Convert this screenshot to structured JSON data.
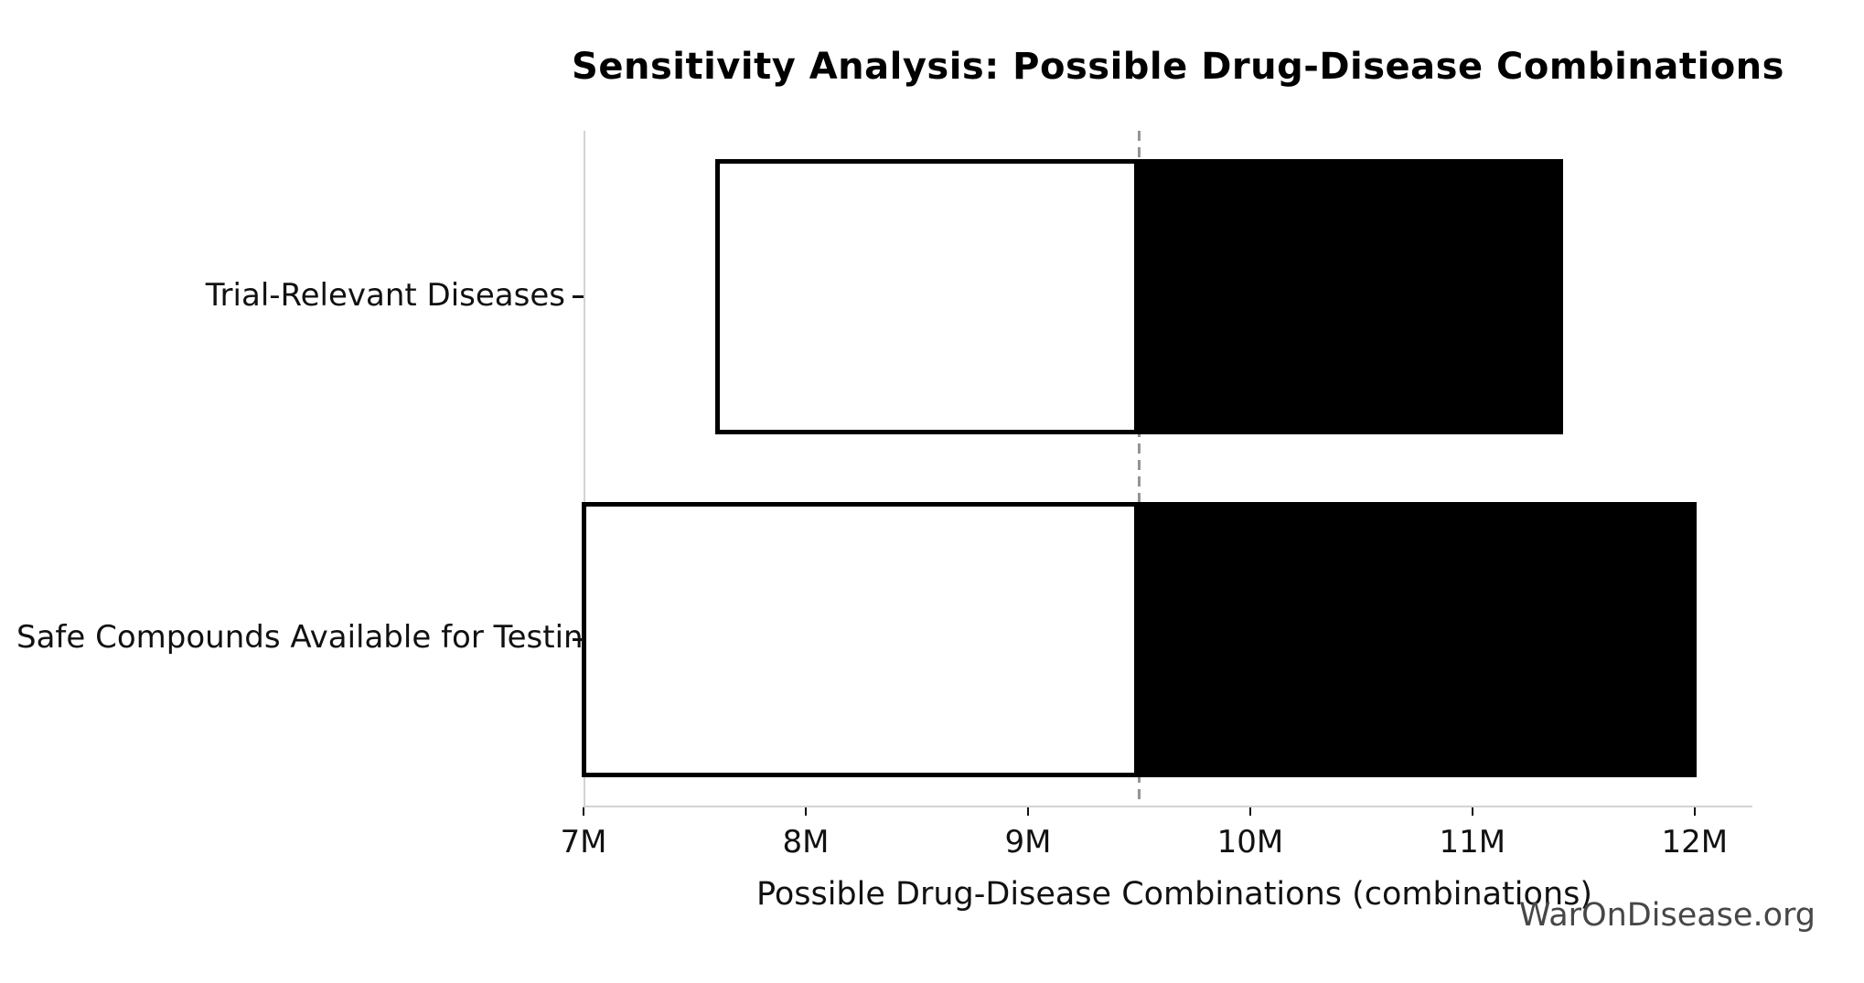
{
  "page": {
    "background": "#ffffff"
  },
  "title": {
    "text": "Sensitivity Analysis: Possible Drug-Disease Combinations"
  },
  "watermark": {
    "text": "WarOnDisease.org"
  },
  "chart_data": {
    "type": "bar",
    "subtype": "tornado-sensitivity",
    "orientation": "horizontal",
    "title": "Sensitivity Analysis: Possible Drug-Disease Combinations",
    "xlabel": "Possible Drug-Disease Combinations (combinations)",
    "ylabel": "",
    "baseline_value": 9500000,
    "baseline_style": "dashed-gray-vertical-line",
    "categories": [
      "Trial-Relevant Diseases",
      "Safe Compounds Available for Testing"
    ],
    "bars": [
      {
        "category": "Trial-Relevant Diseases",
        "low": 7600000,
        "high": 11400000
      },
      {
        "category": "Safe Compounds Available for Testing",
        "low": 7000000,
        "high": 12000000
      }
    ],
    "series": [
      {
        "name": "low-to-baseline (white fill, black edge)",
        "values": [
          7600000,
          7000000
        ]
      },
      {
        "name": "baseline-to-high (black fill)",
        "values": [
          11400000,
          12000000
        ]
      }
    ],
    "xlim": [
      7000000,
      12260000
    ],
    "xticks": [
      7000000,
      8000000,
      9000000,
      10000000,
      11000000,
      12000000
    ],
    "xtick_labels": [
      "7M",
      "8M",
      "9M",
      "10M",
      "11M",
      "12M"
    ],
    "grid": false,
    "legend": false,
    "colors": {
      "background": "#ffffff",
      "bar_low_fill": "#ffffff",
      "bar_high_fill": "#000000",
      "bar_border": "#000000",
      "baseline_line": "#949494",
      "spine": "#d3d3d3",
      "tick": "#111111",
      "text": "#000000",
      "watermark": "#474747"
    }
  }
}
